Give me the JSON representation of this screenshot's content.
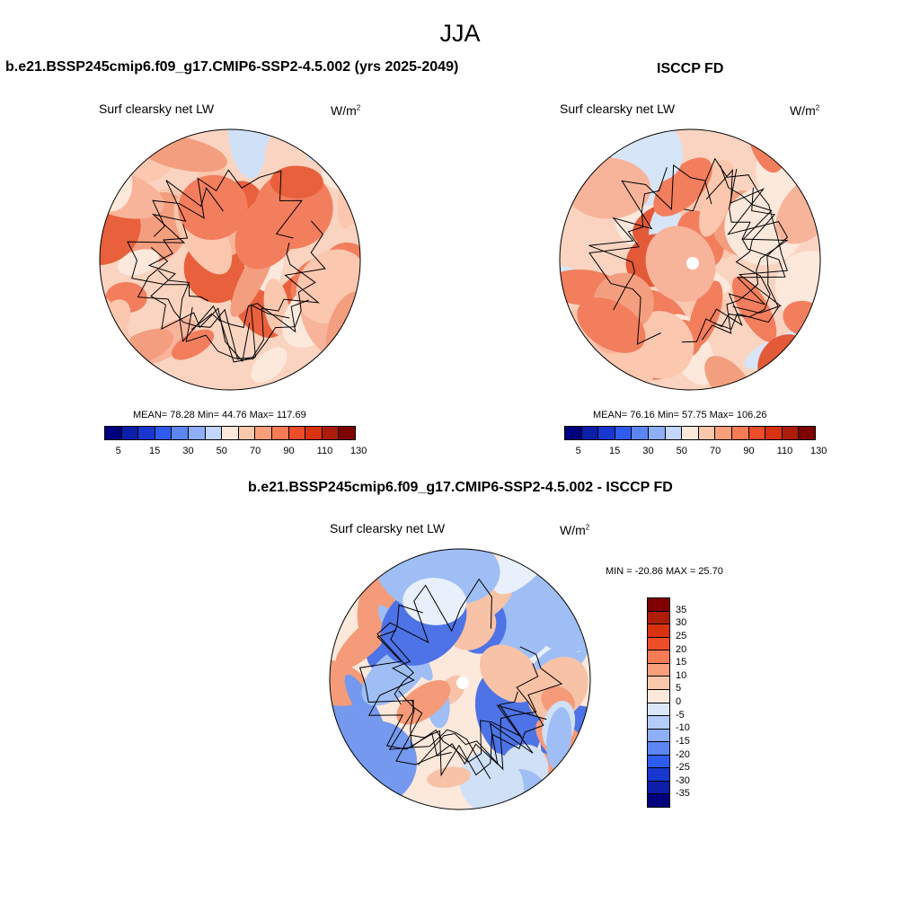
{
  "page_title": "JJA",
  "panels": {
    "model": {
      "title": "b.e21.BSSP245cmip6.f09_g17.CMIP6-SSP2-4.5.002 (yrs 2025-2049)",
      "variable": "Surf clearsky net LW",
      "units_base": "W/m",
      "units_sup": "2",
      "stats": "MEAN=  78.28  Min=  44.76  Max= 117.69"
    },
    "obs": {
      "title": "ISCCP FD",
      "variable": "Surf clearsky net LW",
      "units_base": "W/m",
      "units_sup": "2",
      "stats": "MEAN=  76.16  Min=  57.75  Max= 106.26"
    },
    "diff": {
      "title": "b.e21.BSSP245cmip6.f09_g17.CMIP6-SSP2-4.5.002 - ISCCP FD",
      "variable": "Surf clearsky net LW",
      "units_base": "W/m",
      "units_sup": "2",
      "stats": "MIN = -20.86 MAX =  25.70"
    }
  },
  "colorbar_abs": {
    "colors": [
      "#00007f",
      "#0b1fa8",
      "#1737cf",
      "#2f5cf0",
      "#5d86f4",
      "#8eaef7",
      "#c3d6fb",
      "#fde9dc",
      "#fcc8ad",
      "#fa9f7c",
      "#f77b55",
      "#ee4d2a",
      "#d8320f",
      "#ae1d0a",
      "#7f0000"
    ],
    "labels": [
      "5",
      "15",
      "30",
      "50",
      "70",
      "90",
      "110",
      "130"
    ]
  },
  "colorbar_diff": {
    "colors": [
      "#7f0000",
      "#ae1d0a",
      "#d8320f",
      "#ee4d2a",
      "#f77b55",
      "#fa9f7c",
      "#fcc8ad",
      "#fde9dc",
      "#dbe8fc",
      "#b3ccf9",
      "#8eaef7",
      "#5d86f4",
      "#2f5cf0",
      "#1737cf",
      "#0b1fa8",
      "#00007f"
    ],
    "labels": [
      "35",
      "30",
      "25",
      "20",
      "15",
      "10",
      "5",
      "0",
      "-5",
      "-10",
      "-15",
      "-20",
      "-25",
      "-30",
      "-35"
    ]
  },
  "map_palettes": {
    "model": [
      "#fbd4c1",
      "#f8b49b",
      "#fde8dc",
      "#f49e80",
      "#f27e5d",
      "#fcc7af",
      "#e8613c",
      "#cfe0f7"
    ],
    "obs": [
      "#fbd4c1",
      "#fde8dc",
      "#f49e80",
      "#f27e5d",
      "#e35a38",
      "#fcc7af",
      "#d7e5f8",
      "#f8b49b"
    ],
    "diff": [
      "#fde8dc",
      "#cfe0f7",
      "#9fbef5",
      "#7499ee",
      "#f8c2a6",
      "#f59b79",
      "#4d73e6",
      "#e8f0fb"
    ]
  }
}
